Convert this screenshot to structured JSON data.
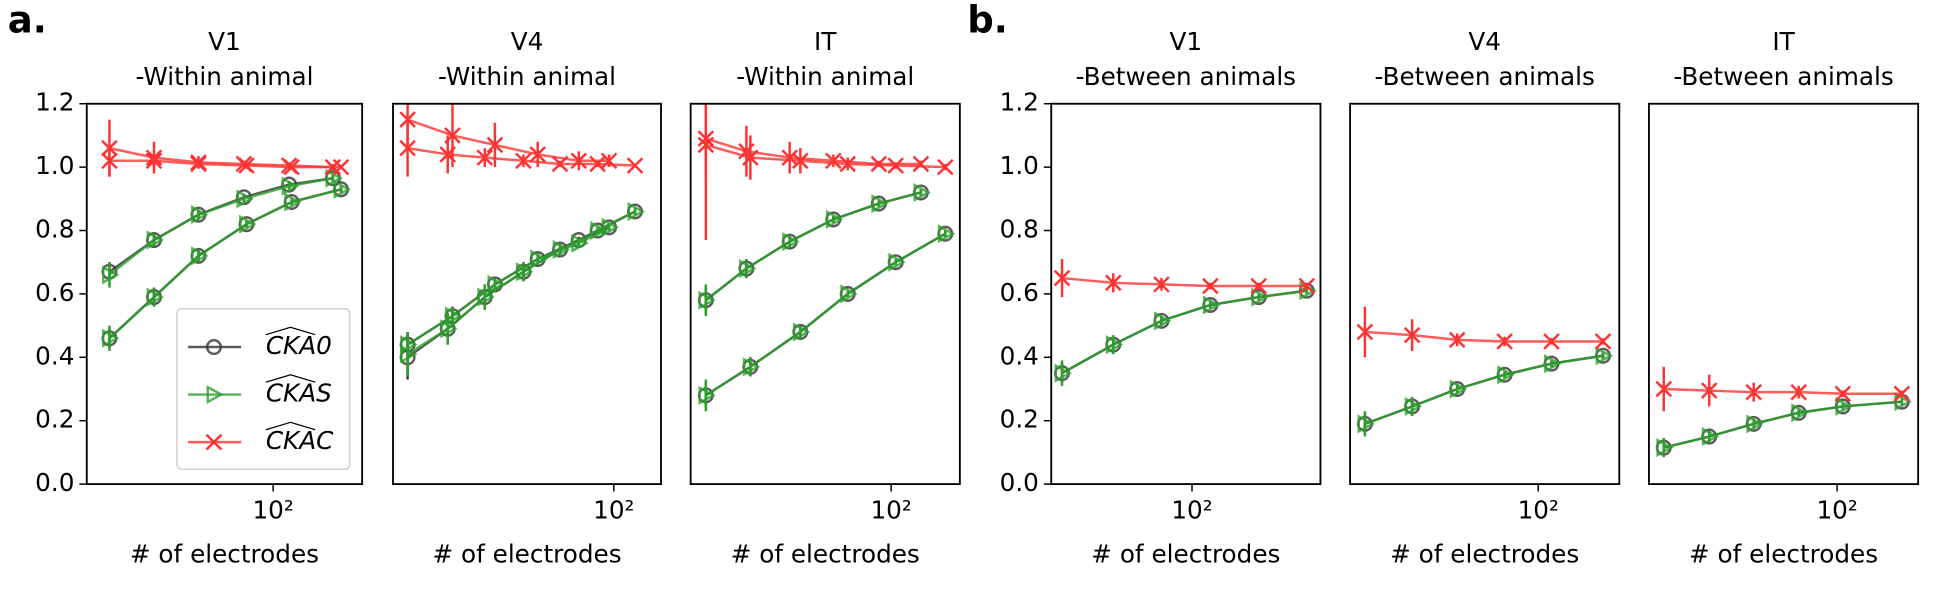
{
  "panel_labels": [
    "a.",
    "b."
  ],
  "chart_data": [
    {
      "type": "line",
      "title": "V1",
      "subtitle": "-Within animal",
      "xlabel": "# of electrodes",
      "xscale": "log",
      "xlim": [
        16,
        240
      ],
      "xticks": [
        {
          "value": 100,
          "label": "10²"
        }
      ],
      "ylim": [
        0,
        1.2
      ],
      "yticks": [
        {
          "value": 0,
          "label": "0.0"
        },
        0.2,
        0.4,
        0.6,
        0.8,
        {
          "value": 1,
          "label": "1.0"
        },
        1.2
      ],
      "legend": "lower right",
      "series": [
        {
          "name": "CKA0",
          "color": "#333333",
          "marker": "circle",
          "curves": [
            {
              "x": [
                20,
                31,
                48,
                75,
                117,
                180
              ],
              "values": [
                0.67,
                0.77,
                0.85,
                0.905,
                0.945,
                0.965
              ],
              "errors": [
                0.03,
                0.02,
                0.015,
                0.01,
                0.01,
                0.01
              ]
            },
            {
              "x": [
                20,
                31,
                48,
                77,
                120,
                195
              ],
              "values": [
                0.46,
                0.59,
                0.72,
                0.82,
                0.89,
                0.93
              ],
              "errors": [
                0.03,
                0.03,
                0.02,
                0.01,
                0.01,
                0.01
              ]
            }
          ]
        },
        {
          "name": "CKAS",
          "color": "#2ca02c",
          "marker": "triangle",
          "curves": [
            {
              "x": [
                20,
                31,
                48,
                75,
                117,
                180
              ],
              "values": [
                0.66,
                0.77,
                0.85,
                0.9,
                0.94,
                0.965
              ],
              "errors": [
                0.04,
                0.02,
                0.015,
                0.01,
                0.01,
                0.01
              ]
            },
            {
              "x": [
                20,
                31,
                48,
                77,
                120,
                195
              ],
              "values": [
                0.46,
                0.59,
                0.72,
                0.82,
                0.89,
                0.93
              ],
              "errors": [
                0.04,
                0.03,
                0.02,
                0.01,
                0.01,
                0.01
              ]
            }
          ]
        },
        {
          "name": "CKAC",
          "color": "#ff3333",
          "marker": "x",
          "curves": [
            {
              "x": [
                20,
                31,
                48,
                75,
                117,
                180
              ],
              "values": [
                1.06,
                1.03,
                1.015,
                1.01,
                1.005,
                1.0
              ],
              "errors": [
                0.09,
                0.05,
                0.02,
                0.01,
                0.01,
                0.01
              ]
            },
            {
              "x": [
                20,
                31,
                48,
                77,
                120,
                195
              ],
              "values": [
                1.02,
                1.02,
                1.01,
                1.005,
                1.0,
                1.0
              ],
              "errors": [
                0.05,
                0.02,
                0.01,
                0.01,
                0.005,
                0.005
              ]
            }
          ]
        }
      ]
    },
    {
      "type": "line",
      "title": "V4",
      "subtitle": "-Within animal",
      "xlabel": "# of electrodes",
      "xscale": "log",
      "xlim": [
        15,
        150
      ],
      "xticks": [
        {
          "value": 100,
          "label": "10²"
        }
      ],
      "ylim": [
        0,
        1.2
      ],
      "series": [
        {
          "color": "#333333",
          "marker": "circle",
          "curves": [
            {
              "x": [
                17,
                25,
                36,
                52,
                74,
                96
              ],
              "values": [
                0.44,
                0.53,
                0.63,
                0.71,
                0.77,
                0.81
              ],
              "errors": [
                0.04,
                0.03,
                0.02,
                0.02,
                0.01,
                0.01
              ]
            },
            {
              "x": [
                17,
                24,
                33,
                46,
                63,
                87,
                120
              ],
              "values": [
                0.4,
                0.49,
                0.59,
                0.67,
                0.74,
                0.8,
                0.86
              ],
              "errors": [
                0.07,
                0.05,
                0.04,
                0.03,
                0.02,
                0.01,
                0.01
              ]
            }
          ]
        },
        {
          "color": "#2ca02c",
          "marker": "triangle",
          "curves": [
            {
              "x": [
                17,
                25,
                36,
                52,
                74,
                96
              ],
              "values": [
                0.44,
                0.53,
                0.63,
                0.71,
                0.76,
                0.81
              ],
              "errors": [
                0.04,
                0.03,
                0.02,
                0.02,
                0.01,
                0.01
              ]
            },
            {
              "x": [
                17,
                24,
                33,
                46,
                63,
                87,
                120
              ],
              "values": [
                0.41,
                0.49,
                0.59,
                0.67,
                0.74,
                0.8,
                0.86
              ],
              "errors": [
                0.07,
                0.05,
                0.04,
                0.03,
                0.02,
                0.01,
                0.01
              ]
            }
          ]
        },
        {
          "color": "#ff3333",
          "marker": "x",
          "curves": [
            {
              "x": [
                17,
                25,
                36,
                52,
                74,
                96
              ],
              "values": [
                1.15,
                1.1,
                1.07,
                1.04,
                1.02,
                1.02
              ],
              "errors": [
                0.08,
                0.1,
                0.07,
                0.04,
                0.03,
                0.02
              ]
            },
            {
              "x": [
                17,
                24,
                33,
                46,
                63,
                87,
                120
              ],
              "values": [
                1.06,
                1.04,
                1.03,
                1.02,
                1.01,
                1.01,
                1.005
              ],
              "errors": [
                0.09,
                0.06,
                0.03,
                0.02,
                0.01,
                0.01,
                0.005
              ]
            }
          ]
        }
      ]
    },
    {
      "type": "line",
      "title": "IT",
      "subtitle": "-Within animal",
      "xlabel": "# of electrodes",
      "xscale": "log",
      "xlim": [
        18,
        180
      ],
      "xticks": [
        {
          "value": 100,
          "label": "10²"
        }
      ],
      "ylim": [
        0,
        1.2
      ],
      "series": [
        {
          "color": "#333333",
          "marker": "circle",
          "curves": [
            {
              "x": [
                20.5,
                29,
                42,
                61,
                90,
                129
              ],
              "values": [
                0.58,
                0.68,
                0.765,
                0.835,
                0.885,
                0.92
              ],
              "errors": [
                0.04,
                0.03,
                0.02,
                0.01,
                0.01,
                0.01
              ]
            },
            {
              "x": [
                20.5,
                30,
                46,
                69,
                104,
                159
              ],
              "values": [
                0.28,
                0.37,
                0.48,
                0.6,
                0.7,
                0.79
              ],
              "errors": [
                0.04,
                0.03,
                0.02,
                0.01,
                0.01,
                0.01
              ]
            }
          ]
        },
        {
          "color": "#2ca02c",
          "marker": "triangle",
          "curves": [
            {
              "x": [
                20.5,
                29,
                42,
                61,
                90,
                129
              ],
              "values": [
                0.58,
                0.68,
                0.765,
                0.835,
                0.885,
                0.92
              ],
              "errors": [
                0.05,
                0.03,
                0.02,
                0.01,
                0.01,
                0.01
              ]
            },
            {
              "x": [
                20.5,
                30,
                46,
                69,
                104,
                159
              ],
              "values": [
                0.28,
                0.37,
                0.48,
                0.6,
                0.7,
                0.79
              ],
              "errors": [
                0.05,
                0.03,
                0.02,
                0.01,
                0.01,
                0.01
              ]
            }
          ]
        },
        {
          "color": "#ff3333",
          "marker": "x",
          "curves": [
            {
              "x": [
                20.5,
                29,
                42,
                61,
                90,
                129
              ],
              "values": [
                1.09,
                1.05,
                1.03,
                1.02,
                1.01,
                1.01
              ],
              "errors": [
                0.12,
                0.08,
                0.05,
                0.02,
                0.01,
                0.01
              ]
            },
            {
              "x": [
                20.5,
                30,
                46,
                69,
                104,
                159
              ],
              "values": [
                1.07,
                1.03,
                1.02,
                1.01,
                1.005,
                1.0
              ],
              "errors": [
                0.3,
                0.07,
                0.04,
                0.02,
                0.01,
                0.01
              ]
            }
          ]
        }
      ]
    },
    {
      "type": "line",
      "title": "V1",
      "subtitle": "-Between animals",
      "xlabel": "# of electrodes",
      "xscale": "log",
      "xlim": [
        30,
        300
      ],
      "xticks": [
        {
          "value": 100,
          "label": "10²"
        }
      ],
      "ylim": [
        0,
        1.2
      ],
      "yticks": [
        {
          "value": 0,
          "label": "0.0"
        },
        0.2,
        0.4,
        0.6,
        0.8,
        {
          "value": 1,
          "label": "1.0"
        },
        1.2
      ],
      "series": [
        {
          "color": "#333333",
          "marker": "circle",
          "curves": [
            {
              "x": [
                32.9,
                51,
                77,
                117,
                177,
                267
              ],
              "values": [
                0.35,
                0.44,
                0.515,
                0.565,
                0.59,
                0.61
              ],
              "errors": [
                0.03,
                0.02,
                0.015,
                0.01,
                0.01,
                0.01
              ]
            }
          ]
        },
        {
          "color": "#2ca02c",
          "marker": "triangle",
          "curves": [
            {
              "x": [
                32.9,
                51,
                77,
                117,
                177,
                267
              ],
              "values": [
                0.35,
                0.44,
                0.515,
                0.565,
                0.59,
                0.61
              ],
              "errors": [
                0.04,
                0.03,
                0.015,
                0.01,
                0.01,
                0.01
              ]
            }
          ]
        },
        {
          "color": "#ff3333",
          "marker": "x",
          "curves": [
            {
              "x": [
                32.9,
                51,
                77,
                117,
                177,
                267
              ],
              "values": [
                0.65,
                0.635,
                0.63,
                0.625,
                0.625,
                0.625
              ],
              "errors": [
                0.06,
                0.03,
                0.02,
                0.01,
                0.01,
                0.01
              ]
            }
          ]
        }
      ]
    },
    {
      "type": "line",
      "title": "V4",
      "subtitle": "-Between animals",
      "xlabel": "# of electrodes",
      "xscale": "log",
      "xlim": [
        20,
        200
      ],
      "xticks": [
        {
          "value": 100,
          "label": "10²"
        }
      ],
      "ylim": [
        0,
        1.2
      ],
      "series": [
        {
          "color": "#333333",
          "marker": "circle",
          "curves": [
            {
              "x": [
                22.7,
                34,
                50,
                75,
                112,
                174
              ],
              "values": [
                0.19,
                0.245,
                0.3,
                0.345,
                0.38,
                0.405
              ],
              "errors": [
                0.03,
                0.02,
                0.015,
                0.01,
                0.01,
                0.01
              ]
            }
          ]
        },
        {
          "color": "#2ca02c",
          "marker": "triangle",
          "curves": [
            {
              "x": [
                22.7,
                34,
                50,
                75,
                112,
                174
              ],
              "values": [
                0.19,
                0.245,
                0.3,
                0.345,
                0.38,
                0.405
              ],
              "errors": [
                0.04,
                0.03,
                0.015,
                0.01,
                0.01,
                0.01
              ]
            }
          ]
        },
        {
          "color": "#ff3333",
          "marker": "x",
          "curves": [
            {
              "x": [
                22.7,
                34,
                50,
                75,
                112,
                174
              ],
              "values": [
                0.48,
                0.47,
                0.455,
                0.45,
                0.45,
                0.45
              ],
              "errors": [
                0.08,
                0.05,
                0.02,
                0.015,
                0.01,
                0.01
              ]
            }
          ]
        }
      ]
    },
    {
      "type": "line",
      "title": "IT",
      "subtitle": "-Between animals",
      "xlabel": "# of electrodes",
      "xscale": "log",
      "xlim": [
        20,
        200
      ],
      "xticks": [
        {
          "value": 100,
          "label": "10²"
        }
      ],
      "ylim": [
        0,
        1.2
      ],
      "series": [
        {
          "color": "#333333",
          "marker": "circle",
          "curves": [
            {
              "x": [
                22.7,
                33.5,
                49,
                72,
                105,
                174
              ],
              "values": [
                0.115,
                0.15,
                0.19,
                0.225,
                0.245,
                0.26
              ],
              "errors": [
                0.03,
                0.02,
                0.015,
                0.01,
                0.01,
                0.01
              ]
            }
          ]
        },
        {
          "color": "#2ca02c",
          "marker": "triangle",
          "curves": [
            {
              "x": [
                22.7,
                33.5,
                49,
                72,
                105,
                174
              ],
              "values": [
                0.115,
                0.15,
                0.19,
                0.225,
                0.245,
                0.26
              ],
              "errors": [
                0.03,
                0.02,
                0.015,
                0.01,
                0.01,
                0.01
              ]
            }
          ]
        },
        {
          "color": "#ff3333",
          "marker": "x",
          "curves": [
            {
              "x": [
                22.7,
                33.5,
                49,
                72,
                105,
                174
              ],
              "values": [
                0.3,
                0.295,
                0.29,
                0.29,
                0.285,
                0.285
              ],
              "errors": [
                0.07,
                0.05,
                0.03,
                0.02,
                0.01,
                0.01
              ]
            }
          ]
        }
      ]
    }
  ]
}
